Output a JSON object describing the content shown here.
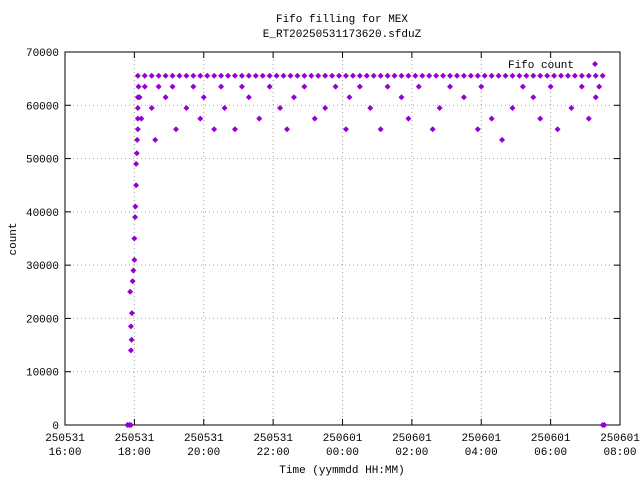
{
  "chart_data": {
    "type": "scatter",
    "title": "Fifo filling for MEX",
    "subtitle": "E_RT20250531173620.sfduZ",
    "x_label": "Time (yymmdd HH:MM)",
    "y_label": "count",
    "xlim": [
      16,
      32
    ],
    "ylim": [
      0,
      70000
    ],
    "xticks": [
      {
        "value": 16,
        "label": "250531\n16:00"
      },
      {
        "value": 18,
        "label": "250531\n18:00"
      },
      {
        "value": 20,
        "label": "250531\n20:00"
      },
      {
        "value": 22,
        "label": "250531\n22:00"
      },
      {
        "value": 24,
        "label": "250601\n00:00"
      },
      {
        "value": 26,
        "label": "250601\n02:00"
      },
      {
        "value": 28,
        "label": "250601\n04:00"
      },
      {
        "value": 30,
        "label": "250601\n06:00"
      },
      {
        "value": 32,
        "label": "250601\n08:00"
      }
    ],
    "yticks": [
      0,
      10000,
      20000,
      30000,
      40000,
      50000,
      60000,
      70000
    ],
    "grid": true,
    "legend": "top-right",
    "x": [
      17.8,
      17.85,
      17.9,
      31.5,
      31.55,
      17.9,
      17.92,
      17.9,
      17.93,
      17.88,
      17.95,
      17.97,
      18.0,
      18.0,
      18.02,
      18.03,
      18.05,
      18.05,
      18.07,
      18.08,
      18.1,
      18.1,
      18.1,
      18.1,
      18.12,
      18.1,
      18.3,
      18.5,
      18.7,
      18.9,
      19.1,
      19.3,
      19.5,
      19.7,
      19.9,
      20.1,
      20.3,
      20.5,
      20.7,
      20.9,
      21.1,
      21.3,
      21.5,
      21.7,
      21.9,
      22.1,
      22.3,
      22.5,
      22.7,
      22.9,
      23.1,
      23.3,
      23.5,
      23.7,
      23.9,
      24.1,
      24.3,
      24.5,
      24.7,
      24.9,
      25.1,
      25.3,
      25.5,
      25.7,
      25.9,
      26.1,
      26.3,
      26.5,
      26.7,
      26.9,
      27.1,
      27.3,
      27.5,
      27.7,
      27.9,
      28.1,
      28.3,
      28.5,
      28.7,
      28.9,
      29.1,
      29.3,
      29.5,
      29.7,
      29.9,
      30.1,
      30.3,
      30.5,
      30.7,
      30.9,
      31.1,
      31.3,
      31.5,
      18.15,
      18.2,
      18.3,
      18.5,
      18.6,
      18.7,
      18.9,
      19.1,
      19.2,
      19.5,
      19.7,
      19.9,
      20.0,
      20.3,
      20.5,
      20.6,
      20.9,
      21.1,
      21.3,
      21.6,
      21.9,
      22.2,
      22.4,
      22.6,
      22.9,
      23.2,
      23.5,
      23.8,
      24.1,
      24.2,
      24.5,
      24.8,
      25.1,
      25.3,
      25.7,
      25.9,
      26.2,
      26.6,
      26.8,
      27.1,
      27.5,
      27.9,
      28.0,
      28.3,
      28.6,
      28.9,
      29.2,
      29.5,
      29.7,
      30.0,
      30.2,
      30.6,
      30.9,
      31.1,
      31.3,
      31.4
    ],
    "series": [
      {
        "name": "Fifo count",
        "color": "#9400d3",
        "values": [
          0,
          0,
          0,
          0,
          0,
          14000,
          16000,
          18500,
          21000,
          25000,
          27000,
          29000,
          31000,
          35000,
          39000,
          41000,
          45000,
          49000,
          51000,
          53500,
          55500,
          57500,
          59500,
          61500,
          63500,
          65535,
          65535,
          65535,
          65535,
          65535,
          65535,
          65535,
          65535,
          65535,
          65535,
          65535,
          65535,
          65535,
          65535,
          65535,
          65535,
          65535,
          65535,
          65535,
          65535,
          65535,
          65535,
          65535,
          65535,
          65535,
          65535,
          65535,
          65535,
          65535,
          65535,
          65535,
          65535,
          65535,
          65535,
          65535,
          65535,
          65535,
          65535,
          65535,
          65535,
          65535,
          65535,
          65535,
          65535,
          65535,
          65535,
          65535,
          65535,
          65535,
          65535,
          65535,
          65535,
          65535,
          65535,
          65535,
          65535,
          65535,
          65535,
          65535,
          65535,
          65535,
          65535,
          65535,
          65535,
          65535,
          65535,
          65535,
          65535,
          61500,
          57500,
          63500,
          59500,
          53500,
          63500,
          61500,
          63500,
          55500,
          59500,
          63500,
          57500,
          61500,
          55500,
          63500,
          59500,
          55500,
          63500,
          61500,
          57500,
          63500,
          59500,
          55500,
          61500,
          63500,
          57500,
          59500,
          63500,
          55500,
          61500,
          63500,
          59500,
          55500,
          63500,
          61500,
          57500,
          63500,
          55500,
          59500,
          63500,
          61500,
          55500,
          63500,
          57500,
          53500,
          59500,
          63500,
          61500,
          57500,
          63500,
          55500,
          59500,
          63500,
          57500,
          61500,
          63500
        ]
      }
    ]
  }
}
